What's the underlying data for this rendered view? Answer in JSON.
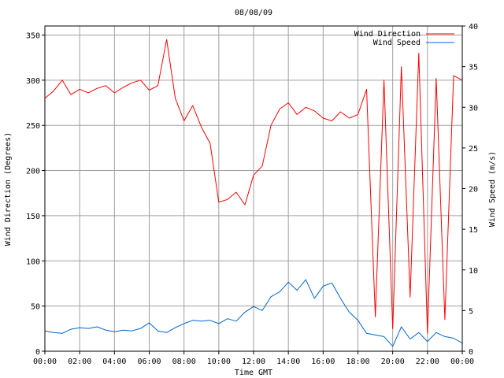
{
  "chart_data": {
    "type": "line",
    "title": "08/08/09",
    "xlabel": "Time GMT",
    "ylabel_left": "Wind Direction (Degrees)",
    "ylabel_right": "Wind Speed (m/s)",
    "grid": true,
    "legend_position": "top-right",
    "xlim": [
      0,
      24
    ],
    "ylim_left": [
      0,
      360
    ],
    "ylim_right": [
      0,
      40
    ],
    "x_ticks": [
      "00:00",
      "02:00",
      "04:00",
      "06:00",
      "08:00",
      "10:00",
      "12:00",
      "14:00",
      "16:00",
      "18:00",
      "20:00",
      "22:00",
      "00:00"
    ],
    "y_ticks_left": [
      "0",
      "50",
      "100",
      "150",
      "200",
      "250",
      "300",
      "350"
    ],
    "y_ticks_right": [
      "0",
      "5",
      "10",
      "15",
      "20",
      "25",
      "30",
      "35",
      "40"
    ],
    "x_hours": [
      0,
      0.5,
      1,
      1.5,
      2,
      2.5,
      3,
      3.5,
      4,
      4.5,
      5,
      5.5,
      6,
      6.5,
      7,
      7.5,
      8,
      8.5,
      9,
      9.5,
      10,
      10.5,
      11,
      11.5,
      12,
      12.5,
      13,
      13.5,
      14,
      14.5,
      15,
      15.5,
      16,
      16.5,
      17,
      17.5,
      18,
      18.5,
      19,
      19.5,
      20,
      20.5,
      21,
      21.5,
      22,
      22.5,
      23,
      23.5,
      24
    ],
    "series": [
      {
        "name": "Wind Direction",
        "axis": "left",
        "color": "#ff0000",
        "values": [
          280,
          288,
          300,
          284,
          290,
          286,
          291,
          294,
          286,
          292,
          297,
          300,
          289,
          294,
          345,
          280,
          255,
          272,
          248,
          230,
          165,
          168,
          176,
          162,
          195,
          205,
          250,
          268,
          275,
          262,
          270,
          266,
          258,
          255,
          265,
          258,
          262,
          290,
          38,
          300,
          25,
          315,
          60,
          330,
          20,
          302,
          35,
          305,
          300
        ]
      },
      {
        "name": "Wind Speed",
        "axis": "right",
        "color": "#0066cc",
        "values": [
          2.5,
          2.3,
          2.2,
          2.7,
          2.9,
          2.8,
          3.0,
          2.6,
          2.4,
          2.6,
          2.5,
          2.8,
          3.5,
          2.5,
          2.3,
          2.9,
          3.4,
          3.8,
          3.7,
          3.8,
          3.4,
          4.0,
          3.7,
          4.8,
          5.5,
          5.0,
          6.7,
          7.3,
          8.5,
          7.5,
          8.8,
          6.5,
          8.0,
          8.4,
          6.5,
          4.8,
          3.8,
          2.2,
          2.0,
          1.8,
          0.6,
          3.0,
          1.5,
          2.3,
          1.2,
          2.3,
          1.8,
          1.6,
          1.0
        ]
      }
    ]
  }
}
